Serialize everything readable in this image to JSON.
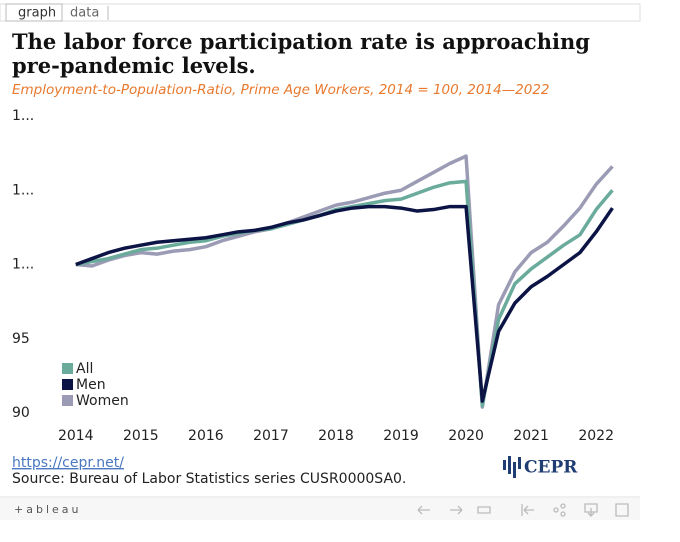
{
  "tabs": [
    "graph",
    "data"
  ],
  "chart_data": {
    "type": "line",
    "title": "The labor force participation rate is approaching pre-pandemic levels.",
    "subtitle": "Employment-to-Population-Ratio, Prime Age Workers, 2014 = 100, 2014—2022",
    "x": [
      2014,
      2014.25,
      2014.5,
      2014.75,
      2015,
      2015.25,
      2015.5,
      2015.75,
      2016,
      2016.25,
      2016.5,
      2016.75,
      2017,
      2017.25,
      2017.5,
      2017.75,
      2018,
      2018.25,
      2018.5,
      2018.75,
      2019,
      2019.25,
      2019.5,
      2019.75,
      2020,
      2020.25,
      2020.5,
      2020.75,
      2021,
      2021.25,
      2021.5,
      2021.75,
      2022,
      2022.25
    ],
    "series": [
      {
        "name": "All",
        "color": "#6aab9c",
        "values": [
          100,
          100.2,
          100.4,
          100.7,
          101.0,
          101.1,
          101.3,
          101.5,
          101.6,
          101.9,
          102.1,
          102.3,
          102.4,
          102.7,
          103.0,
          103.3,
          103.7,
          103.9,
          104.1,
          104.3,
          104.4,
          104.8,
          105.2,
          105.5,
          105.6,
          90.5,
          96.3,
          98.7,
          99.7,
          100.5,
          101.3,
          102.0,
          103.7,
          105.0
        ]
      },
      {
        "name": "Men",
        "color": "#0c1445",
        "values": [
          100,
          100.4,
          100.8,
          101.1,
          101.3,
          101.5,
          101.6,
          101.7,
          101.8,
          102.0,
          102.2,
          102.3,
          102.5,
          102.8,
          103.0,
          103.3,
          103.6,
          103.8,
          103.9,
          103.9,
          103.8,
          103.6,
          103.7,
          103.9,
          103.9,
          90.8,
          95.5,
          97.4,
          98.5,
          99.2,
          100.0,
          100.8,
          102.2,
          103.8
        ]
      },
      {
        "name": "Women",
        "color": "#9b9bb5",
        "values": [
          100,
          99.9,
          100.3,
          100.6,
          100.8,
          100.7,
          100.9,
          101.0,
          101.2,
          101.6,
          101.9,
          102.2,
          102.4,
          102.8,
          103.2,
          103.6,
          104.0,
          104.2,
          104.5,
          104.8,
          105.0,
          105.6,
          106.2,
          106.8,
          107.3,
          90.4,
          97.3,
          99.5,
          100.8,
          101.5,
          102.6,
          103.8,
          105.4,
          106.6
        ]
      }
    ],
    "xlim": [
      2013.45,
      2022.52
    ],
    "xticks": [
      2014,
      2015,
      2016,
      2017,
      2018,
      2019,
      2020,
      2021,
      2022
    ],
    "ylim": [
      90,
      110
    ],
    "yticks": [
      90,
      95,
      {
        "value": 100,
        "label": "1..."
      },
      {
        "value": 105,
        "label": "1..."
      },
      {
        "value": 110,
        "label": "1..."
      }
    ],
    "legend": "lower left",
    "link": "https://cepr.net/",
    "source": "Source: Bureau of Labor Statistics series CUSR0000SA0.",
    "logo": "CEPR"
  },
  "toolbar": {
    "brand": "+ableau"
  }
}
